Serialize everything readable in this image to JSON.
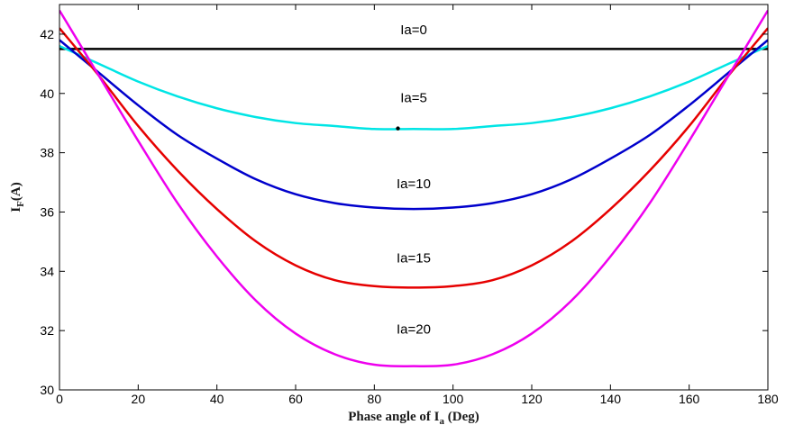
{
  "chart_data": {
    "type": "line",
    "title": "",
    "xlabel": {
      "base": "Phase angle of I",
      "sub": "a",
      "suffix": " (Deg)"
    },
    "ylabel": {
      "base": "I",
      "sub": "F",
      "suffix": "(A)"
    },
    "xlim": [
      0,
      180
    ],
    "ylim": [
      30,
      43
    ],
    "xticks": [
      0,
      20,
      40,
      60,
      80,
      100,
      120,
      140,
      160,
      180
    ],
    "yticks": [
      30,
      32,
      34,
      36,
      38,
      40,
      42
    ],
    "grid": false,
    "legend": "none",
    "x": [
      0,
      10,
      20,
      30,
      40,
      50,
      60,
      70,
      80,
      90,
      100,
      110,
      120,
      130,
      140,
      150,
      160,
      170,
      180
    ],
    "series": [
      {
        "color": "#000000",
        "values": [
          41.5,
          41.5,
          41.5,
          41.5,
          41.5,
          41.5,
          41.5,
          41.5,
          41.5,
          41.5,
          41.5,
          41.5,
          41.5,
          41.5,
          41.5,
          41.5,
          41.5,
          41.5,
          41.5
        ]
      },
      {
        "color": "#00e5e5",
        "values": [
          41.6,
          41.0,
          40.4,
          39.9,
          39.5,
          39.2,
          39.0,
          38.9,
          38.8,
          38.8,
          38.8,
          38.9,
          39.0,
          39.2,
          39.5,
          39.9,
          40.4,
          41.0,
          41.6
        ]
      },
      {
        "color": "#0000cc",
        "values": [
          41.8,
          40.7,
          39.6,
          38.6,
          37.8,
          37.1,
          36.6,
          36.3,
          36.15,
          36.1,
          36.15,
          36.3,
          36.6,
          37.1,
          37.8,
          38.6,
          39.6,
          40.7,
          41.8
        ]
      },
      {
        "color": "#e60000",
        "values": [
          42.2,
          40.6,
          38.9,
          37.4,
          36.1,
          35.0,
          34.2,
          33.7,
          33.5,
          33.45,
          33.5,
          33.7,
          34.2,
          35.0,
          36.1,
          37.4,
          38.9,
          40.6,
          42.2
        ]
      },
      {
        "color": "#ee00ee",
        "values": [
          42.8,
          40.6,
          38.4,
          36.3,
          34.5,
          33.0,
          31.9,
          31.2,
          30.85,
          30.8,
          30.85,
          31.2,
          31.9,
          33.0,
          34.5,
          36.3,
          38.4,
          40.6,
          42.8
        ]
      }
    ],
    "annotations": [
      {
        "text": "Ia=0",
        "x": 90,
        "y": 42.0
      },
      {
        "text": "Ia=5",
        "x": 90,
        "y": 39.7
      },
      {
        "text": "Ia=10",
        "x": 90,
        "y": 36.8
      },
      {
        "text": "Ia=15",
        "x": 90,
        "y": 34.3
      },
      {
        "text": "Ia=20",
        "x": 90,
        "y": 31.9
      }
    ],
    "marker": {
      "x": 86,
      "y": 38.82,
      "color": "#000000"
    }
  }
}
